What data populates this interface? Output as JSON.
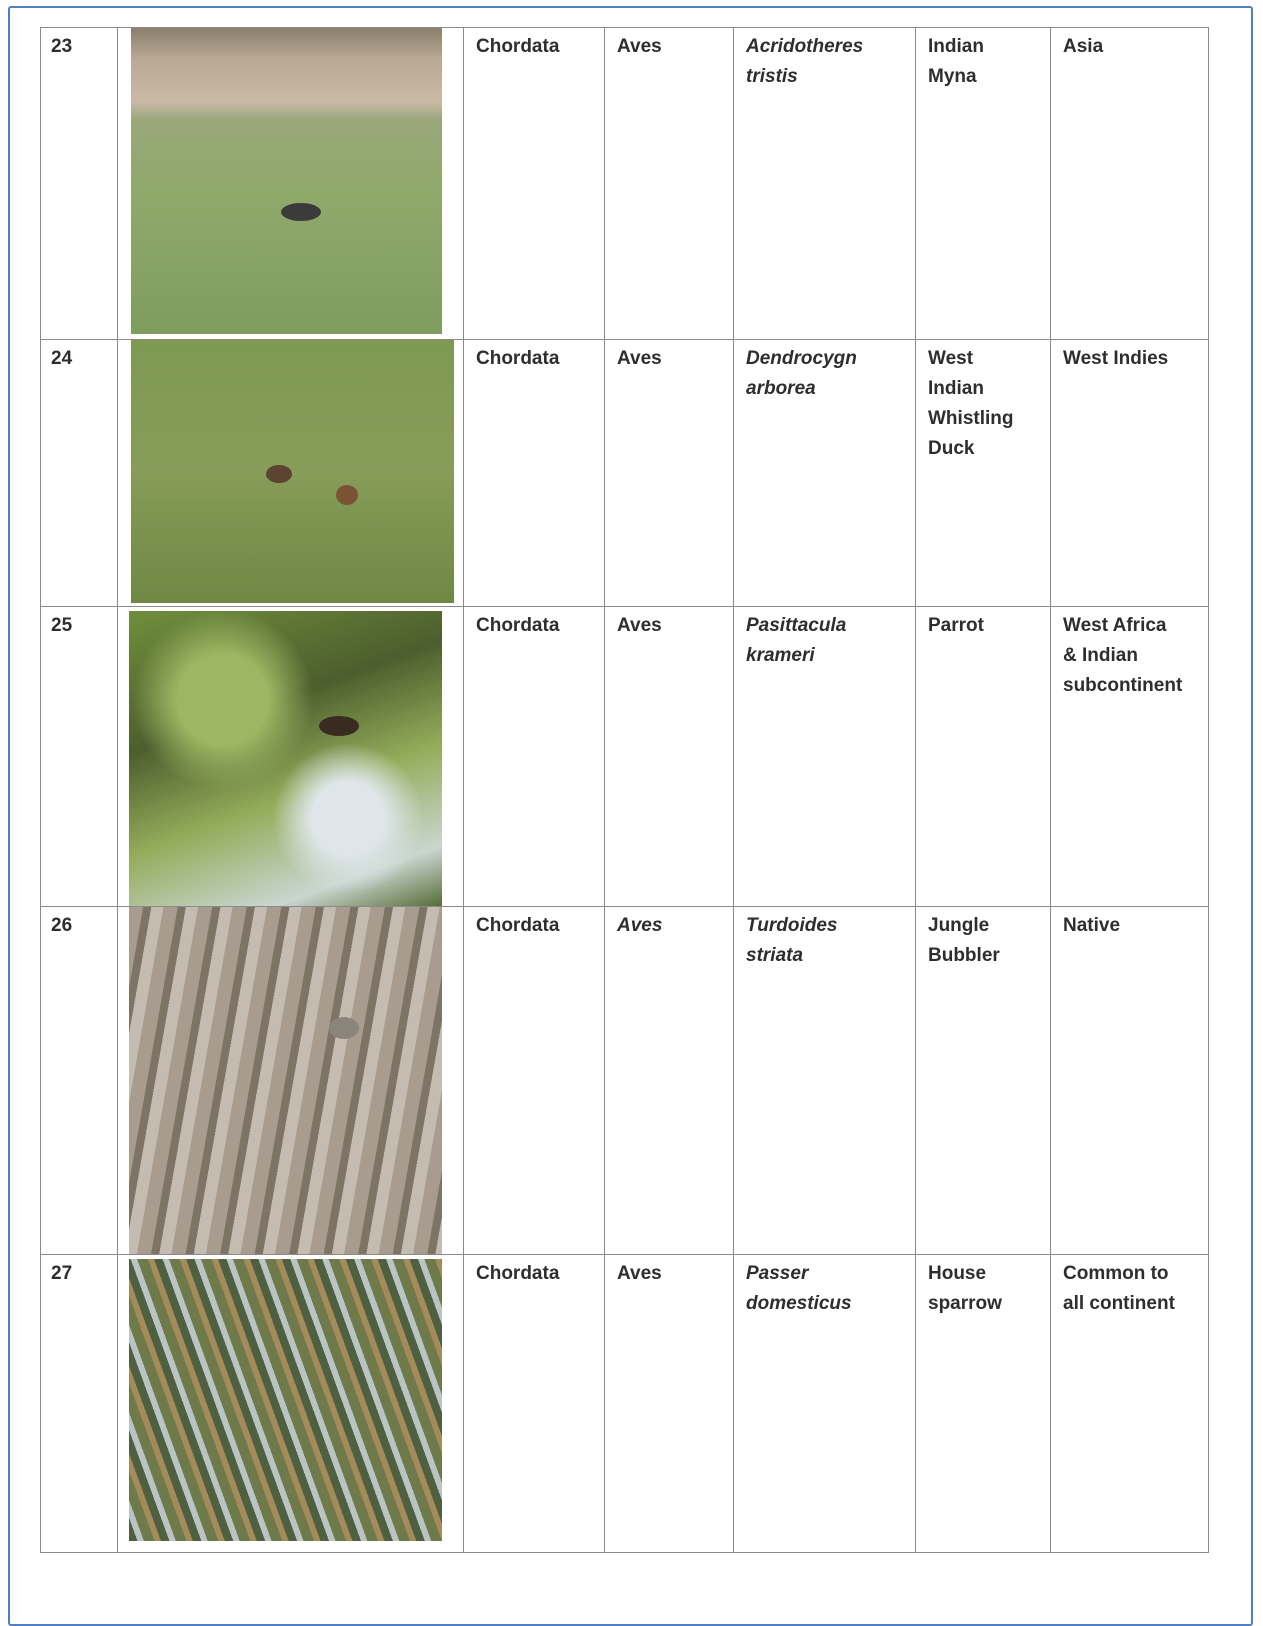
{
  "table": {
    "rows": [
      {
        "number": "23",
        "phylum": "Chordata",
        "class": "Aves",
        "species": [
          "Acridotheres",
          "tristis"
        ],
        "common_name": [
          "Indian",
          "Myna"
        ],
        "distribution": [
          "Asia"
        ]
      },
      {
        "number": "24",
        "phylum": "Chordata",
        "class": "Aves",
        "species": [
          "Dendrocygn",
          "arborea"
        ],
        "common_name": [
          "West",
          "Indian",
          "Whistling",
          "Duck"
        ],
        "distribution": [
          "West Indies"
        ]
      },
      {
        "number": "25",
        "phylum": "Chordata",
        "class": "Aves",
        "species": [
          "Pasittacula",
          "krameri"
        ],
        "common_name": [
          "Parrot"
        ],
        "distribution": [
          "West Africa",
          "& Indian",
          "subcontinent"
        ]
      },
      {
        "number": "26",
        "phylum": "Chordata",
        "class": "Aves",
        "species": [
          "Turdoides",
          "striata"
        ],
        "common_name": [
          "Jungle",
          "Bubbler"
        ],
        "distribution": [
          "Native"
        ]
      },
      {
        "number": "27",
        "phylum": "Chordata",
        "class": "Aves",
        "species": [
          "Passer",
          "domesticus"
        ],
        "common_name": [
          "House",
          "sparrow"
        ],
        "distribution": [
          "Common to",
          "all continent"
        ]
      }
    ]
  }
}
